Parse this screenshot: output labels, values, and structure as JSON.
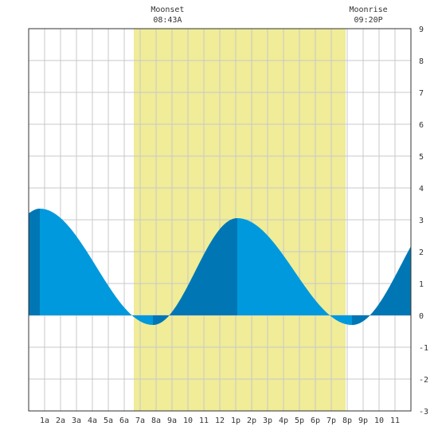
{
  "chart_data": {
    "type": "area",
    "x_tick_labels": [
      "1a",
      "2a",
      "3a",
      "4a",
      "5a",
      "6a",
      "7a",
      "8a",
      "9a",
      "10",
      "11",
      "12",
      "1p",
      "2p",
      "3p",
      "4p",
      "5p",
      "6p",
      "7p",
      "8p",
      "9p",
      "10",
      "11"
    ],
    "y_tick_labels": [
      "9",
      "8",
      "7",
      "6",
      "5",
      "4",
      "3",
      "2",
      "1",
      "0",
      "-1",
      "-2",
      "-3"
    ],
    "xlim": [
      0,
      24
    ],
    "ylim": [
      -3,
      9
    ],
    "grid": true,
    "daylight_hours": [
      6.6,
      19.9
    ],
    "tide": {
      "extrema": [
        {
          "hour": 0.7,
          "height": 3.35
        },
        {
          "hour": 7.8,
          "height": -0.3
        },
        {
          "hour": 13.1,
          "height": 3.05
        },
        {
          "hour": 20.3,
          "height": -0.3
        },
        {
          "hour": 26.5,
          "height": 3.5
        }
      ],
      "start_height": 3.2
    },
    "annotations": [
      {
        "label": "Moonset",
        "time": "08:43A",
        "hour": 8.72
      },
      {
        "label": "Moonrise",
        "time": "09:20P",
        "hour": 21.33
      }
    ],
    "colors": {
      "daylight": "#f0ec98",
      "tide_light": "#0099dd",
      "tide_dark": "#0077b4",
      "grid": "#c8c8c8",
      "frame": "#333333"
    }
  }
}
